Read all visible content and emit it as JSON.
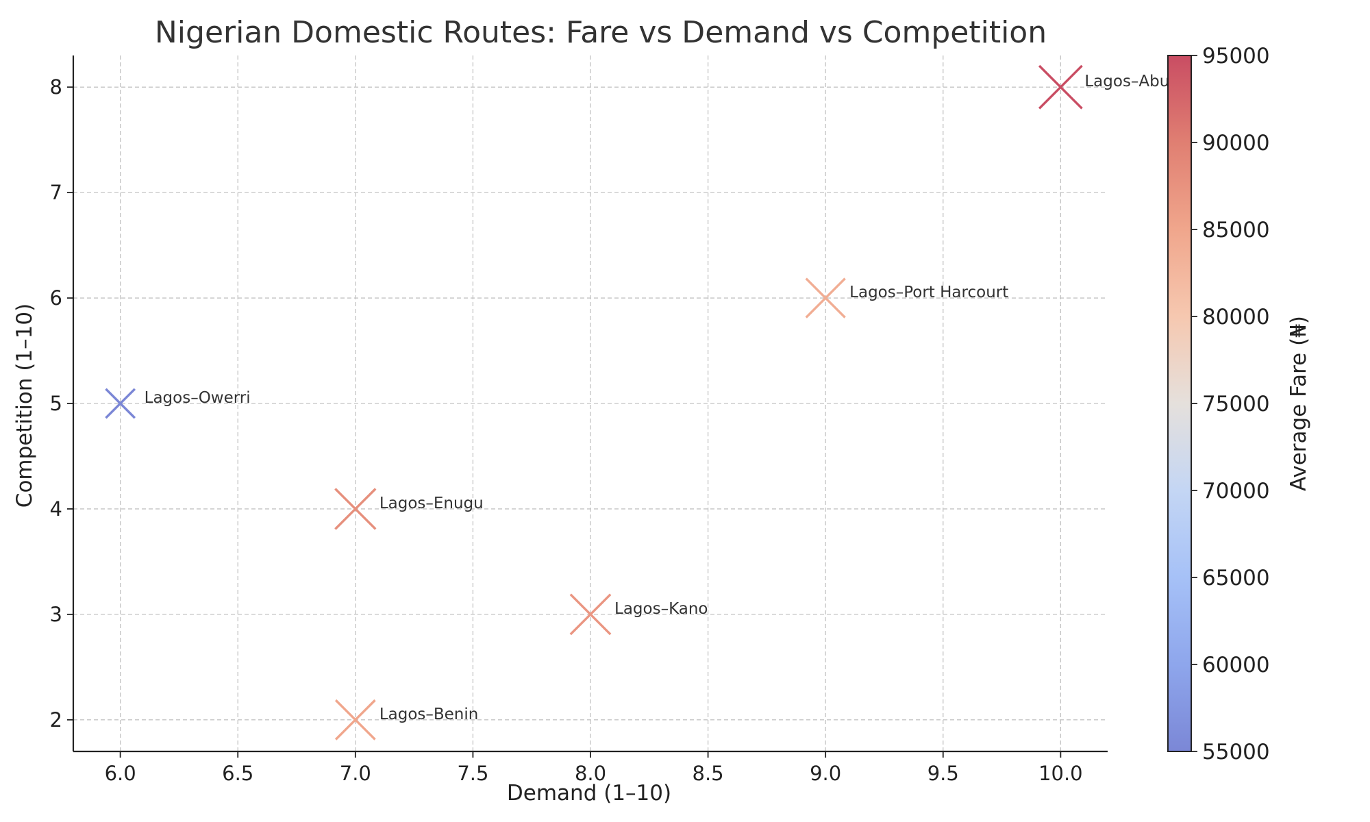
{
  "chart_data": {
    "type": "scatter",
    "title": "Nigerian Domestic Routes: Fare vs Demand vs Competition",
    "xlabel": "Demand (1–10)",
    "ylabel": "Competition (1–10)",
    "xlim": [
      5.8,
      10.2
    ],
    "ylim": [
      1.7,
      8.3
    ],
    "x_ticks": [
      6.0,
      6.5,
      7.0,
      7.5,
      8.0,
      8.5,
      9.0,
      9.5,
      10.0
    ],
    "y_ticks": [
      2,
      3,
      4,
      5,
      6,
      7,
      8
    ],
    "grid": true,
    "marker": "x",
    "colormap": "coolwarm",
    "colorbar": {
      "label": "Average Fare (₦)",
      "range": [
        55000,
        95000
      ],
      "ticks": [
        55000,
        60000,
        65000,
        70000,
        75000,
        80000,
        85000,
        90000,
        95000
      ]
    },
    "points": [
      {
        "label": "Lagos–Abuja",
        "demand": 10,
        "competition": 8,
        "fare": 95000
      },
      {
        "label": "Lagos–Port Harcourt",
        "demand": 9,
        "competition": 6,
        "fare": 84000
      },
      {
        "label": "Lagos–Owerri",
        "demand": 6,
        "competition": 5,
        "fare": 55000
      },
      {
        "label": "Lagos–Enugu",
        "demand": 7,
        "competition": 4,
        "fare": 88000
      },
      {
        "label": "Lagos–Kano",
        "demand": 8,
        "competition": 3,
        "fare": 87000
      },
      {
        "label": "Lagos–Benin",
        "demand": 7,
        "competition": 2,
        "fare": 85000
      }
    ]
  }
}
